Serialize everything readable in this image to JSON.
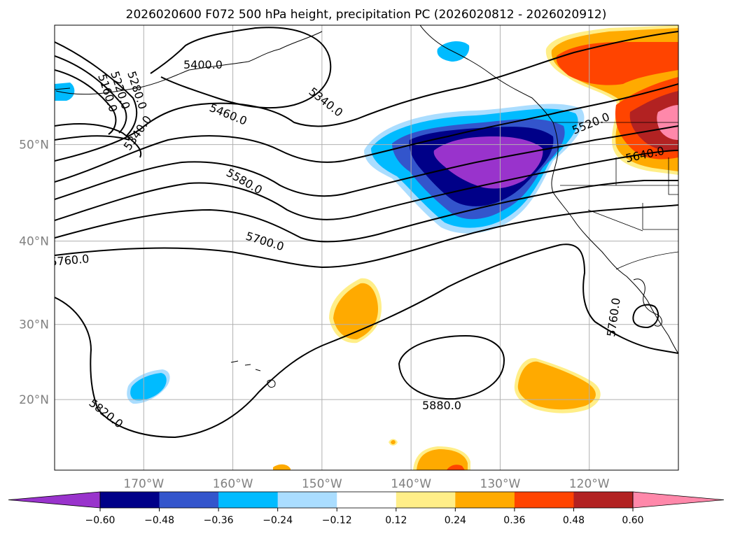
{
  "title": "2026020600 F072 500 hPa height, precipitation PC (2026020812 - 2026020912)",
  "map": {
    "lon_range": [
      -180,
      -110
    ],
    "lat_range": [
      10,
      60
    ],
    "lon_ticks": [
      {
        "value": -170,
        "label": "170°W"
      },
      {
        "value": -160,
        "label": "160°W"
      },
      {
        "value": -150,
        "label": "150°W"
      },
      {
        "value": -140,
        "label": "140°W"
      },
      {
        "value": -130,
        "label": "130°W"
      },
      {
        "value": -120,
        "label": "120°W"
      }
    ],
    "lat_ticks": [
      {
        "value": 50,
        "label": "50°N"
      },
      {
        "value": 40,
        "label": "40°N"
      },
      {
        "value": 30,
        "label": "30°N"
      },
      {
        "value": 20,
        "label": "20°N"
      }
    ],
    "grid": true,
    "contour_labels": [
      "5400.0",
      "5340.0",
      "5280.0",
      "5220.0",
      "5160.0",
      "5340.0",
      "5460.0",
      "5520.0",
      "5580.0",
      "5640.0",
      "5700.0",
      "5760.0",
      "5760.0",
      "5820.0",
      "5880.0"
    ]
  },
  "colorbar": {
    "ticks": [
      "−0.60",
      "−0.48",
      "−0.36",
      "−0.24",
      "−0.12",
      "0.12",
      "0.24",
      "0.36",
      "0.48",
      "0.60"
    ],
    "colors": [
      "#9933cc",
      "#000088",
      "#3355cc",
      "#00bbff",
      "#aaddff",
      "#ffffff",
      "#ffee88",
      "#ffaa00",
      "#ff4400",
      "#b22222",
      "#ff88aa"
    ]
  },
  "palette": {
    "purple": "#9933cc",
    "navy": "#000088",
    "blue": "#3355cc",
    "cyan": "#00bbff",
    "lightblue": "#aaddff",
    "lightyellow": "#ffee88",
    "orange": "#ffaa00",
    "redorange": "#ff4400",
    "darkred": "#b22222",
    "pink": "#ff88aa"
  }
}
